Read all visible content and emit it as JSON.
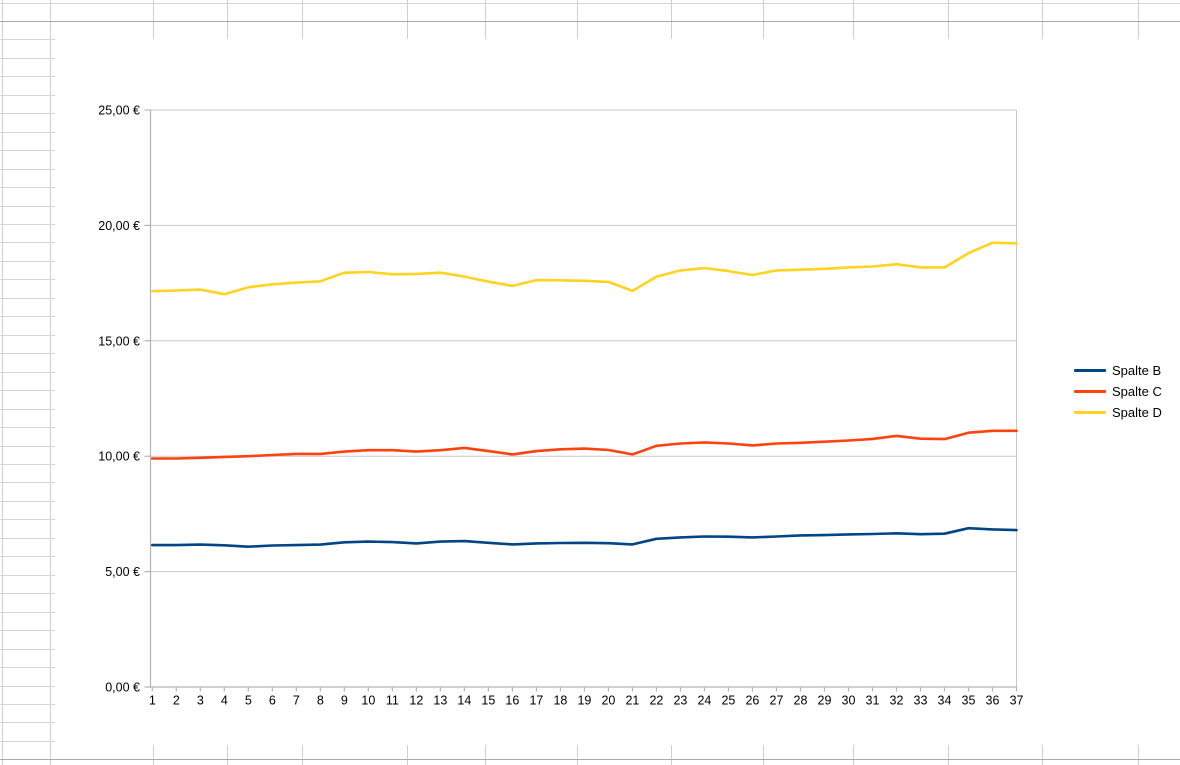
{
  "app": {
    "kind": "spreadsheet-with-embedded-chart"
  },
  "colors": {
    "spalte_b": "#004586",
    "spalte_c": "#FF420E",
    "spalte_d": "#FFD320",
    "plot_gridline": "#c8c8c8",
    "axis_line": "#b3b3b3",
    "label_text": "#000000",
    "cell_grid": "#d4d4d4",
    "cell_grid_dark": "#a8a8a8"
  },
  "chart_data": {
    "type": "line",
    "title": "",
    "x": [
      1,
      2,
      3,
      4,
      5,
      6,
      7,
      8,
      9,
      10,
      11,
      12,
      13,
      14,
      15,
      16,
      17,
      18,
      19,
      20,
      21,
      22,
      23,
      24,
      25,
      26,
      27,
      28,
      29,
      30,
      31,
      32,
      33,
      34,
      35,
      36,
      37
    ],
    "series": [
      {
        "name": "Spalte B",
        "color_key": "spalte_b",
        "values": [
          6.15,
          6.15,
          6.17,
          6.14,
          6.08,
          6.13,
          6.15,
          6.17,
          6.27,
          6.3,
          6.28,
          6.22,
          6.3,
          6.32,
          6.25,
          6.18,
          6.22,
          6.24,
          6.25,
          6.23,
          6.18,
          6.42,
          6.48,
          6.52,
          6.51,
          6.48,
          6.52,
          6.57,
          6.58,
          6.61,
          6.63,
          6.66,
          6.62,
          6.64,
          6.88,
          6.83,
          6.8
        ]
      },
      {
        "name": "Spalte C",
        "color_key": "spalte_c",
        "values": [
          9.9,
          9.9,
          9.93,
          9.97,
          10.0,
          10.05,
          10.1,
          10.1,
          10.2,
          10.26,
          10.26,
          10.2,
          10.26,
          10.36,
          10.22,
          10.08,
          10.22,
          10.3,
          10.33,
          10.27,
          10.08,
          10.45,
          10.55,
          10.6,
          10.55,
          10.47,
          10.55,
          10.58,
          10.63,
          10.68,
          10.75,
          10.88,
          10.76,
          10.74,
          11.02,
          11.1,
          11.1
        ]
      },
      {
        "name": "Spalte D",
        "color_key": "spalte_d",
        "values": [
          17.15,
          17.18,
          17.22,
          17.02,
          17.32,
          17.45,
          17.52,
          17.58,
          17.95,
          17.98,
          17.88,
          17.9,
          17.95,
          17.78,
          17.56,
          17.38,
          17.63,
          17.62,
          17.6,
          17.55,
          17.16,
          17.78,
          18.05,
          18.15,
          18.02,
          17.85,
          18.05,
          18.08,
          18.12,
          18.18,
          18.22,
          18.32,
          18.18,
          18.18,
          18.8,
          19.25,
          19.22
        ]
      }
    ],
    "y_axis": {
      "min": 0,
      "max": 25,
      "step": 5,
      "format": "german-euro",
      "ticks": [
        {
          "value": 25,
          "label": "25,00 €"
        },
        {
          "value": 20,
          "label": "20,00 €"
        },
        {
          "value": 15,
          "label": "15,00 €"
        },
        {
          "value": 10,
          "label": "10,00 €"
        },
        {
          "value": 5,
          "label": "5,00 €"
        },
        {
          "value": 0,
          "label": "0,00 €"
        }
      ]
    },
    "x_axis": {
      "labels": [
        "1",
        "2",
        "3",
        "4",
        "5",
        "6",
        "7",
        "8",
        "9",
        "10",
        "11",
        "12",
        "13",
        "14",
        "15",
        "16",
        "17",
        "18",
        "19",
        "20",
        "21",
        "22",
        "23",
        "24",
        "25",
        "26",
        "27",
        "28",
        "29",
        "30",
        "31",
        "32",
        "33",
        "34",
        "35",
        "36",
        "37"
      ]
    },
    "legend": {
      "position": "right",
      "entries": [
        "Spalte B",
        "Spalte C",
        "Spalte D"
      ]
    },
    "grid": "horizontal"
  }
}
